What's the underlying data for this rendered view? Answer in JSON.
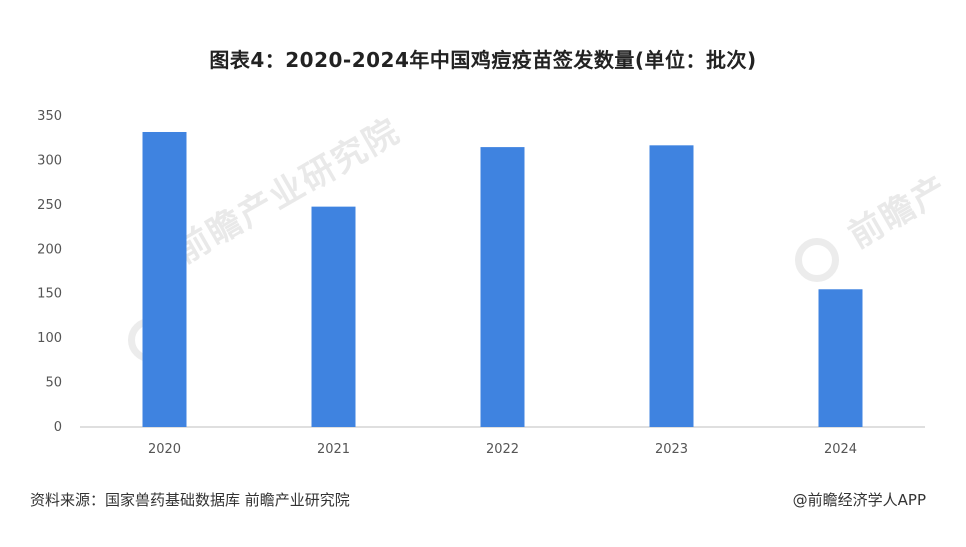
{
  "chart_data": {
    "type": "bar",
    "title": "图表4：2020-2024年中国鸡痘疫苗签发数量(单位：批次)",
    "categories": [
      "2020",
      "2021",
      "2022",
      "2023",
      "2024"
    ],
    "values": [
      332,
      248,
      315,
      317,
      155
    ],
    "ylim": [
      0,
      350
    ],
    "yticks": [
      0,
      50,
      100,
      150,
      200,
      250,
      300,
      350
    ],
    "xlabel": "",
    "ylabel": "",
    "grid": false,
    "legend": "none",
    "bar_color": "#3f83e0"
  },
  "footer": {
    "source": "资料来源：国家兽药基础数据库 前瞻产业研究院",
    "credit": "@前瞻经济学人APP"
  },
  "watermark": {
    "text": "前瞻产业研究院",
    "short": "前瞻产"
  }
}
